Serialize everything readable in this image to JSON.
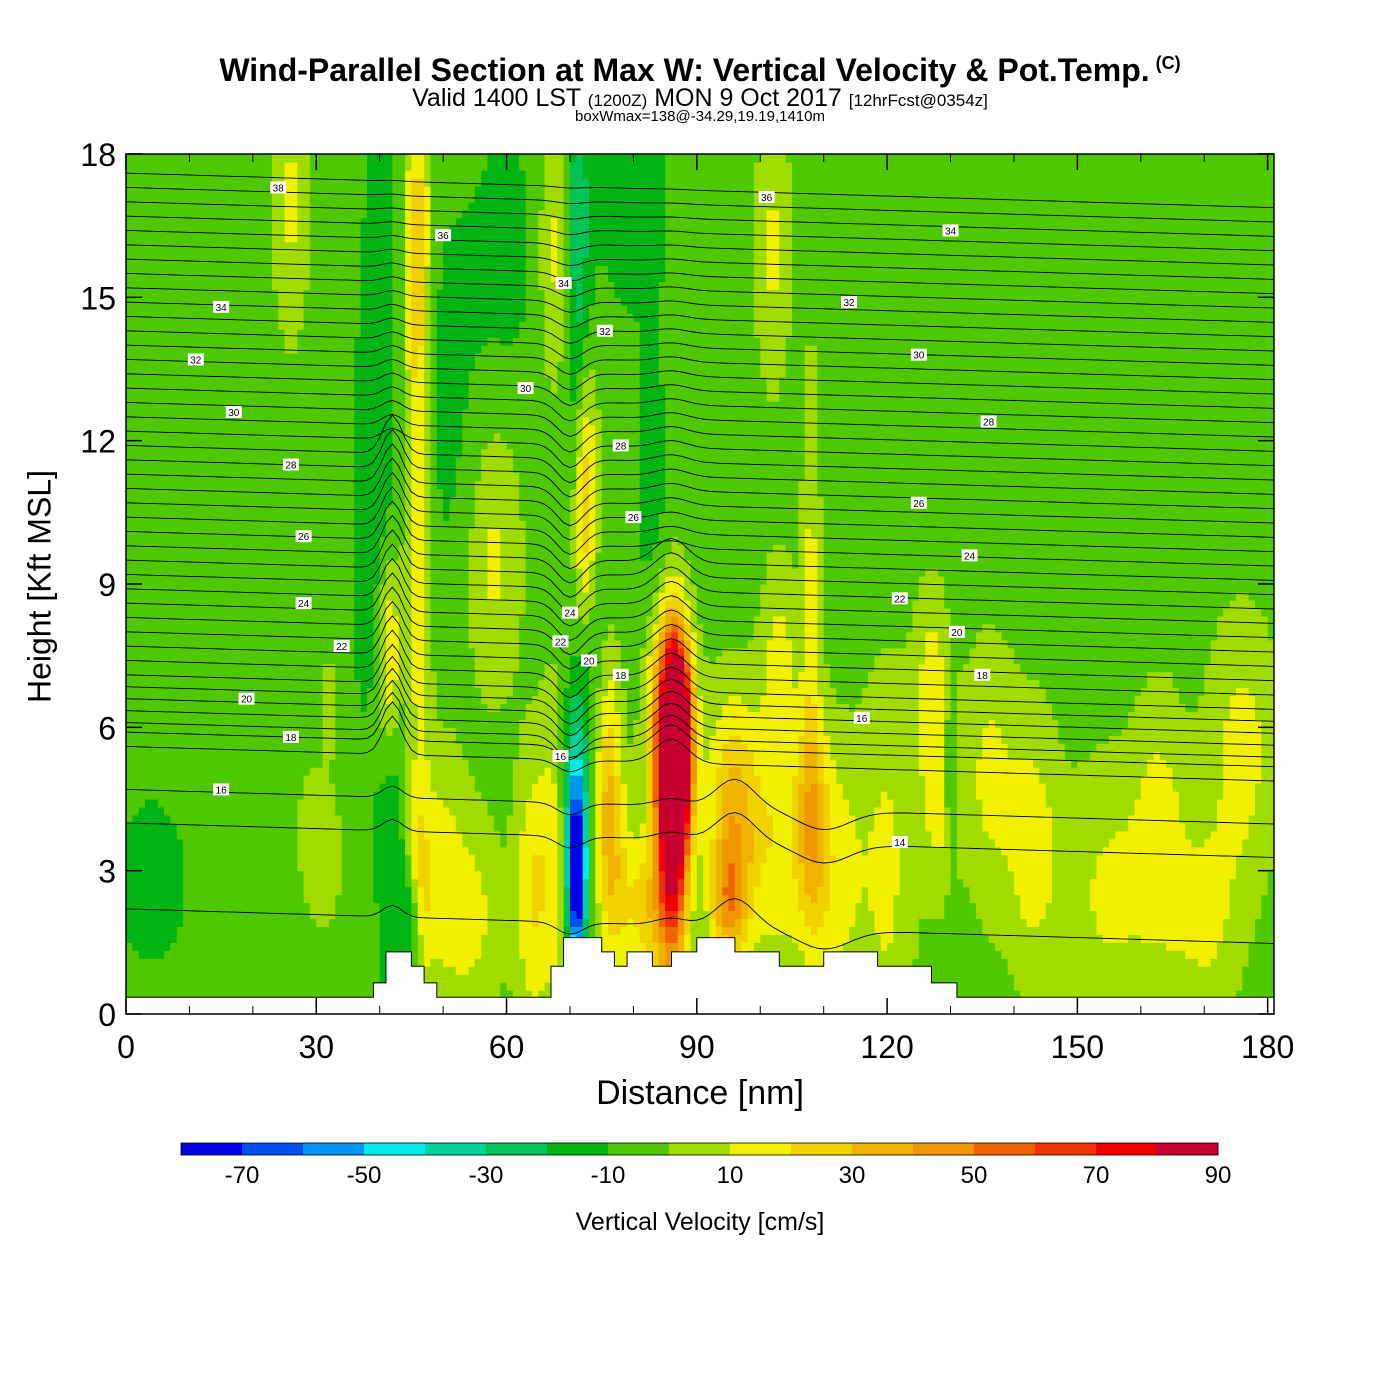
{
  "header": {
    "title": "Wind-Parallel Section at Max W: Vertical Velocity & Pot.Temp.",
    "copyright": "(C)",
    "subtitle_main": "Valid 1400 LST",
    "subtitle_utc": "(1200Z)",
    "subtitle_date": "MON 9 Oct 2017",
    "subtitle_fcst": "[12hrFcst@0354z]",
    "box_info": "boxWmax=138@-34.29,19.19,1410m"
  },
  "chart_data": {
    "type": "heatmap",
    "title": "Wind-Parallel Section at Max W: Vertical Velocity & Pot.Temp.",
    "xlabel": "Distance [nm]",
    "ylabel": "Height [Kft MSL]",
    "xlim": [
      0,
      181
    ],
    "ylim": [
      0,
      18
    ],
    "x_ticks": [
      0,
      30,
      60,
      90,
      120,
      150,
      180
    ],
    "y_ticks": [
      0,
      3,
      6,
      9,
      12,
      15,
      18
    ],
    "background_value": -5,
    "colorbar": {
      "label": "Vertical Velocity [cm/s]",
      "levels": [
        -80,
        -70,
        -60,
        -50,
        -40,
        -30,
        -20,
        -10,
        0,
        10,
        20,
        30,
        40,
        50,
        60,
        70,
        80,
        90,
        100
      ],
      "tick_labels": [
        "-70",
        "-50",
        "-30",
        "-10",
        "10",
        "30",
        "50",
        "70",
        "90"
      ],
      "tick_values": [
        -70,
        -50,
        -30,
        -10,
        10,
        30,
        50,
        70,
        90
      ],
      "colors": [
        "#0000e6",
        "#0050f0",
        "#0096f0",
        "#00ebf0",
        "#00d29b",
        "#00c35a",
        "#00b414",
        "#50c800",
        "#a0dc00",
        "#f0f000",
        "#f0d200",
        "#f0b400",
        "#f09600",
        "#f06400",
        "#f03200",
        "#f00000",
        "#c80032"
      ]
    },
    "velocity_cells": [
      {
        "x": 45,
        "y": 1.8,
        "sx": 1.2,
        "sy": 1.0,
        "v": -35
      },
      {
        "x": 42,
        "y": 4.5,
        "sx": 1.8,
        "sy": 3.5,
        "v": -20
      },
      {
        "x": 41.5,
        "y": 7.5,
        "sx": 1.4,
        "sy": 1.6,
        "v": 30
      },
      {
        "x": 46,
        "y": 2.5,
        "sx": 1.5,
        "sy": 1.5,
        "v": 22
      },
      {
        "x": 46,
        "y": 9,
        "sx": 1.5,
        "sy": 3.5,
        "v": 15
      },
      {
        "x": 46,
        "y": 16,
        "sx": 1.5,
        "sy": 3.5,
        "v": 25
      },
      {
        "x": 40,
        "y": 15,
        "sx": 2,
        "sy": 4,
        "v": -15
      },
      {
        "x": 38,
        "y": 10,
        "sx": 2,
        "sy": 3,
        "v": -15
      },
      {
        "x": 50,
        "y": 3,
        "sx": 2.5,
        "sy": 2,
        "v": 12
      },
      {
        "x": 55,
        "y": 2,
        "sx": 3,
        "sy": 1.5,
        "v": 12
      },
      {
        "x": 58,
        "y": 9.5,
        "sx": 3,
        "sy": 2,
        "v": 12
      },
      {
        "x": 50,
        "y": 13,
        "sx": 4,
        "sy": 3,
        "v": -14
      },
      {
        "x": 64,
        "y": 2.5,
        "sx": 2,
        "sy": 2,
        "v": 18
      },
      {
        "x": 68,
        "y": 3.5,
        "sx": 2,
        "sy": 2.5,
        "v": 15
      },
      {
        "x": 71,
        "y": 2.8,
        "sx": 1.0,
        "sy": 1.2,
        "v": -70
      },
      {
        "x": 71,
        "y": 3.7,
        "sx": 1.3,
        "sy": 1.8,
        "v": -40
      },
      {
        "x": 70,
        "y": 5,
        "sx": 1.5,
        "sy": 1.5,
        "v": -20
      },
      {
        "x": 72.5,
        "y": 10.5,
        "sx": 1.3,
        "sy": 2.0,
        "v": 35
      },
      {
        "x": 73,
        "y": 8,
        "sx": 1.6,
        "sy": 2,
        "v": -20
      },
      {
        "x": 71,
        "y": 16,
        "sx": 1.5,
        "sy": 3,
        "v": -30
      },
      {
        "x": 68,
        "y": 16,
        "sx": 2,
        "sy": 2,
        "v": 15
      },
      {
        "x": 76,
        "y": 4.5,
        "sx": 1.5,
        "sy": 2,
        "v": 30
      },
      {
        "x": 78,
        "y": 2.5,
        "sx": 2,
        "sy": 1.5,
        "v": 15
      },
      {
        "x": 82,
        "y": 2.2,
        "sx": 1.8,
        "sy": 1.0,
        "v": 20
      },
      {
        "x": 86,
        "y": 6,
        "sx": 2.4,
        "sy": 1.5,
        "v": 50
      },
      {
        "x": 86,
        "y": 4.0,
        "sx": 1.8,
        "sy": 2.5,
        "v": 85
      },
      {
        "x": 87,
        "y": 5.5,
        "sx": 1.3,
        "sy": 1.3,
        "v": 95
      },
      {
        "x": 83,
        "y": 11,
        "sx": 2,
        "sy": 2,
        "v": -15
      },
      {
        "x": 96,
        "y": 4.0,
        "sx": 3.0,
        "sy": 1.8,
        "v": 38
      },
      {
        "x": 95,
        "y": 2.3,
        "sx": 2,
        "sy": 0.8,
        "v": 25
      },
      {
        "x": 103,
        "y": 3.5,
        "sx": 2.5,
        "sy": 2,
        "v": 15
      },
      {
        "x": 108,
        "y": 4.0,
        "sx": 1.8,
        "sy": 1.8,
        "v": 32
      },
      {
        "x": 112,
        "y": 3,
        "sx": 3,
        "sy": 2,
        "v": 15
      },
      {
        "x": 103,
        "y": 7.5,
        "sx": 2,
        "sy": 1.5,
        "v": 12
      },
      {
        "x": 108,
        "y": 9.5,
        "sx": 1,
        "sy": 3,
        "v": 12
      },
      {
        "x": 120,
        "y": 3,
        "sx": 3,
        "sy": 3,
        "v": 12
      },
      {
        "x": 128,
        "y": 4.5,
        "sx": 2,
        "sy": 1.5,
        "v": 12
      },
      {
        "x": 127,
        "y": 7,
        "sx": 2,
        "sy": 1.5,
        "v": 12
      },
      {
        "x": 130,
        "y": 5.2,
        "sx": 0.6,
        "sy": 1.2,
        "v": -25
      },
      {
        "x": 136,
        "y": 5,
        "sx": 3,
        "sy": 2,
        "v": 12
      },
      {
        "x": 143,
        "y": 3.5,
        "sx": 3,
        "sy": 2,
        "v": 15
      },
      {
        "x": 155,
        "y": 2.5,
        "sx": 5,
        "sy": 2,
        "v": 12
      },
      {
        "x": 163,
        "y": 4,
        "sx": 3,
        "sy": 2,
        "v": 12
      },
      {
        "x": 176,
        "y": 5.5,
        "sx": 4,
        "sy": 2,
        "v": 14
      },
      {
        "x": 170,
        "y": 2,
        "sx": 4,
        "sy": 1.5,
        "v": 12
      },
      {
        "x": 4,
        "y": 2.8,
        "sx": 5,
        "sy": 1.5,
        "v": -14
      },
      {
        "x": 28,
        "y": 2.0,
        "sx": 4,
        "sy": 1.5,
        "v": -14
      },
      {
        "x": 30,
        "y": 3.0,
        "sx": 3,
        "sy": 1.5,
        "v": 12
      },
      {
        "x": 26,
        "y": 17,
        "sx": 2,
        "sy": 2,
        "v": 12
      },
      {
        "x": 60,
        "y": 16,
        "sx": 4,
        "sy": 2,
        "v": -14
      },
      {
        "x": 80,
        "y": 17,
        "sx": 5,
        "sy": 2,
        "v": -14
      },
      {
        "x": 102,
        "y": 16,
        "sx": 2,
        "sy": 2,
        "v": 12
      },
      {
        "x": 32,
        "y": 6.5,
        "sx": 0.6,
        "sy": 0.6,
        "v": 12
      }
    ],
    "theta_contours": [
      {
        "base": 2.2,
        "label": "14"
      },
      {
        "base": 4.0,
        "label": "16"
      },
      {
        "base": 4.7,
        "label": "16"
      },
      {
        "base": 5.6,
        "label": "16"
      },
      {
        "base": 5.9,
        "label": "18"
      },
      {
        "base": 6.1,
        "label": "18"
      },
      {
        "base": 6.35,
        "label": "18"
      },
      {
        "base": 6.6,
        "label": "20"
      },
      {
        "base": 6.85,
        "label": "20"
      },
      {
        "base": 7.1,
        "label": "20"
      },
      {
        "base": 7.4,
        "label": "22"
      },
      {
        "base": 7.7,
        "label": "22"
      },
      {
        "base": 8.0,
        "label": "22"
      },
      {
        "base": 8.3,
        "label": "24"
      },
      {
        "base": 8.6,
        "label": "24"
      },
      {
        "base": 8.9,
        "label": "24"
      },
      {
        "base": 9.2,
        "label": "24"
      },
      {
        "base": 9.5,
        "label": "26"
      },
      {
        "base": 9.8,
        "label": "26"
      },
      {
        "base": 10.1,
        "label": "26"
      },
      {
        "base": 10.4,
        "label": "26"
      },
      {
        "base": 10.7,
        "label": "26"
      },
      {
        "base": 11.0,
        "label": "28"
      },
      {
        "base": 11.3,
        "label": "28"
      },
      {
        "base": 11.6,
        "label": "28"
      },
      {
        "base": 11.9,
        "label": "28"
      },
      {
        "base": 12.2,
        "label": "28"
      },
      {
        "base": 12.5,
        "label": "30"
      },
      {
        "base": 12.8,
        "label": "30"
      },
      {
        "base": 13.1,
        "label": "30"
      },
      {
        "base": 13.4,
        "label": "30"
      },
      {
        "base": 13.7,
        "label": "32"
      },
      {
        "base": 14.0,
        "label": "32"
      },
      {
        "base": 14.3,
        "label": "32"
      },
      {
        "base": 14.6,
        "label": "34"
      },
      {
        "base": 14.9,
        "label": "34"
      },
      {
        "base": 15.2,
        "label": "34"
      },
      {
        "base": 15.5,
        "label": "34"
      },
      {
        "base": 15.8,
        "label": "36"
      },
      {
        "base": 16.1,
        "label": "36"
      },
      {
        "base": 16.4,
        "label": "36"
      },
      {
        "base": 16.7,
        "label": "36"
      },
      {
        "base": 17.0,
        "label": "38"
      },
      {
        "base": 17.3,
        "label": "38"
      },
      {
        "base": 17.6,
        "label": "38"
      }
    ],
    "contour_labels": [
      {
        "x": 24,
        "y": 17.3,
        "text": "38"
      },
      {
        "x": 50,
        "y": 16.3,
        "text": "36"
      },
      {
        "x": 101,
        "y": 17.1,
        "text": "36"
      },
      {
        "x": 130,
        "y": 16.4,
        "text": "34"
      },
      {
        "x": 69,
        "y": 15.3,
        "text": "34"
      },
      {
        "x": 15,
        "y": 14.8,
        "text": "34"
      },
      {
        "x": 114,
        "y": 14.9,
        "text": "32"
      },
      {
        "x": 75.5,
        "y": 14.3,
        "text": "32"
      },
      {
        "x": 11,
        "y": 13.7,
        "text": "32"
      },
      {
        "x": 125,
        "y": 13.8,
        "text": "30"
      },
      {
        "x": 63,
        "y": 13.1,
        "text": "30"
      },
      {
        "x": 17,
        "y": 12.6,
        "text": "30"
      },
      {
        "x": 136,
        "y": 12.4,
        "text": "28"
      },
      {
        "x": 78,
        "y": 11.9,
        "text": "28"
      },
      {
        "x": 26,
        "y": 11.5,
        "text": "28"
      },
      {
        "x": 125,
        "y": 10.7,
        "text": "26"
      },
      {
        "x": 80,
        "y": 10.4,
        "text": "26"
      },
      {
        "x": 28,
        "y": 10.0,
        "text": "26"
      },
      {
        "x": 133,
        "y": 9.6,
        "text": "24"
      },
      {
        "x": 70,
        "y": 8.4,
        "text": "24"
      },
      {
        "x": 28,
        "y": 8.6,
        "text": "24"
      },
      {
        "x": 122,
        "y": 8.7,
        "text": "22"
      },
      {
        "x": 68.5,
        "y": 7.8,
        "text": "22"
      },
      {
        "x": 34,
        "y": 7.7,
        "text": "22"
      },
      {
        "x": 131,
        "y": 8.0,
        "text": "20"
      },
      {
        "x": 73,
        "y": 7.4,
        "text": "20"
      },
      {
        "x": 19,
        "y": 6.6,
        "text": "20"
      },
      {
        "x": 135,
        "y": 7.1,
        "text": "18"
      },
      {
        "x": 78,
        "y": 7.1,
        "text": "18"
      },
      {
        "x": 26,
        "y": 5.8,
        "text": "18"
      },
      {
        "x": 116,
        "y": 6.2,
        "text": "16"
      },
      {
        "x": 68.5,
        "y": 5.4,
        "text": "16"
      },
      {
        "x": 15,
        "y": 4.7,
        "text": "16"
      },
      {
        "x": 122,
        "y": 3.6,
        "text": "14"
      }
    ],
    "terrain": [
      [
        0,
        0.35
      ],
      [
        39,
        0.35
      ],
      [
        39,
        0.65
      ],
      [
        41,
        0.65
      ],
      [
        41,
        1.3
      ],
      [
        45,
        1.3
      ],
      [
        45,
        1.0
      ],
      [
        47,
        1.0
      ],
      [
        47,
        0.65
      ],
      [
        49,
        0.65
      ],
      [
        49,
        0.35
      ],
      [
        67,
        0.35
      ],
      [
        67,
        1.0
      ],
      [
        69,
        1.0
      ],
      [
        69,
        1.6
      ],
      [
        75,
        1.6
      ],
      [
        75,
        1.3
      ],
      [
        77,
        1.3
      ],
      [
        77,
        1.0
      ],
      [
        79,
        1.0
      ],
      [
        79,
        1.3
      ],
      [
        83,
        1.3
      ],
      [
        83,
        1.0
      ],
      [
        86,
        1.0
      ],
      [
        86,
        1.3
      ],
      [
        90,
        1.3
      ],
      [
        90,
        1.6
      ],
      [
        96,
        1.6
      ],
      [
        96,
        1.3
      ],
      [
        103,
        1.3
      ],
      [
        103,
        1.0
      ],
      [
        110,
        1.0
      ],
      [
        110,
        1.3
      ],
      [
        118.5,
        1.3
      ],
      [
        118.5,
        1.0
      ],
      [
        127,
        1.0
      ],
      [
        127,
        0.65
      ],
      [
        131,
        0.65
      ],
      [
        131,
        0.35
      ],
      [
        181,
        0.35
      ]
    ]
  }
}
